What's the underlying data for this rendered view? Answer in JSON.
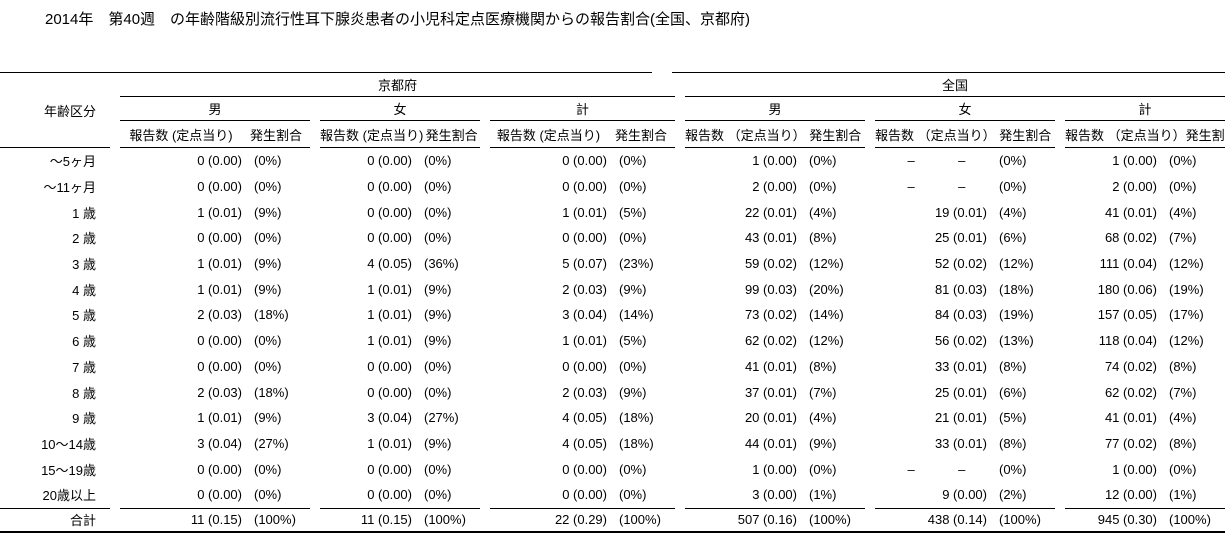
{
  "title": "2014年　第40週　の年齢階級別流行性耳下腺炎患者の小児科定点医療機関からの報告割合(全国、京都府)",
  "table": {
    "age_header": "年齢区分",
    "regions": {
      "kyoto": "京都府",
      "national": "全国"
    },
    "gender_headers": [
      "男",
      "女",
      "計"
    ],
    "count_header_kyoto": "報告数 (定点当り)",
    "count_header_national": "報告数 （定点当り）",
    "ratio_header": "発生割合",
    "rows": [
      {
        "age": "～5ヶ月",
        "cells": [
          {
            "c": "0 (0.00)",
            "p": "(0%)"
          },
          {
            "c": "0 (0.00)",
            "p": "(0%)"
          },
          {
            "c": "0 (0.00)",
            "p": "(0%)"
          },
          {
            "c": "1 (0.00)",
            "p": "(0%)"
          },
          {
            "c": "–            –      ",
            "p": "(0%)"
          },
          {
            "c": "1 (0.00)",
            "p": "(0%)"
          }
        ]
      },
      {
        "age": "～11ヶ月",
        "cells": [
          {
            "c": "0 (0.00)",
            "p": "(0%)"
          },
          {
            "c": "0 (0.00)",
            "p": "(0%)"
          },
          {
            "c": "0 (0.00)",
            "p": "(0%)"
          },
          {
            "c": "2 (0.00)",
            "p": "(0%)"
          },
          {
            "c": "–            –      ",
            "p": "(0%)"
          },
          {
            "c": "2 (0.00)",
            "p": "(0%)"
          }
        ]
      },
      {
        "age": "1 歳",
        "cells": [
          {
            "c": "1 (0.01)",
            "p": "(9%)"
          },
          {
            "c": "0 (0.00)",
            "p": "(0%)"
          },
          {
            "c": "1 (0.01)",
            "p": "(5%)"
          },
          {
            "c": "22 (0.01)",
            "p": "(4%)"
          },
          {
            "c": "19 (0.01)",
            "p": "(4%)"
          },
          {
            "c": "41 (0.01)",
            "p": "(4%)"
          }
        ]
      },
      {
        "age": "2 歳",
        "cells": [
          {
            "c": "0 (0.00)",
            "p": "(0%)"
          },
          {
            "c": "0 (0.00)",
            "p": "(0%)"
          },
          {
            "c": "0 (0.00)",
            "p": "(0%)"
          },
          {
            "c": "43 (0.01)",
            "p": "(8%)"
          },
          {
            "c": "25 (0.01)",
            "p": "(6%)"
          },
          {
            "c": "68 (0.02)",
            "p": "(7%)"
          }
        ]
      },
      {
        "age": "3 歳",
        "cells": [
          {
            "c": "1 (0.01)",
            "p": "(9%)"
          },
          {
            "c": "4 (0.05)",
            "p": "(36%)"
          },
          {
            "c": "5 (0.07)",
            "p": "(23%)"
          },
          {
            "c": "59 (0.02)",
            "p": "(12%)"
          },
          {
            "c": "52 (0.02)",
            "p": "(12%)"
          },
          {
            "c": "111 (0.04)",
            "p": "(12%)"
          }
        ]
      },
      {
        "age": "4 歳",
        "cells": [
          {
            "c": "1 (0.01)",
            "p": "(9%)"
          },
          {
            "c": "1 (0.01)",
            "p": "(9%)"
          },
          {
            "c": "2 (0.03)",
            "p": "(9%)"
          },
          {
            "c": "99 (0.03)",
            "p": "(20%)"
          },
          {
            "c": "81 (0.03)",
            "p": "(18%)"
          },
          {
            "c": "180 (0.06)",
            "p": "(19%)"
          }
        ]
      },
      {
        "age": "5 歳",
        "cells": [
          {
            "c": "2 (0.03)",
            "p": "(18%)"
          },
          {
            "c": "1 (0.01)",
            "p": "(9%)"
          },
          {
            "c": "3 (0.04)",
            "p": "(14%)"
          },
          {
            "c": "73 (0.02)",
            "p": "(14%)"
          },
          {
            "c": "84 (0.03)",
            "p": "(19%)"
          },
          {
            "c": "157 (0.05)",
            "p": "(17%)"
          }
        ]
      },
      {
        "age": "6 歳",
        "cells": [
          {
            "c": "0 (0.00)",
            "p": "(0%)"
          },
          {
            "c": "1 (0.01)",
            "p": "(9%)"
          },
          {
            "c": "1 (0.01)",
            "p": "(5%)"
          },
          {
            "c": "62 (0.02)",
            "p": "(12%)"
          },
          {
            "c": "56 (0.02)",
            "p": "(13%)"
          },
          {
            "c": "118 (0.04)",
            "p": "(12%)"
          }
        ]
      },
      {
        "age": "7 歳",
        "cells": [
          {
            "c": "0 (0.00)",
            "p": "(0%)"
          },
          {
            "c": "0 (0.00)",
            "p": "(0%)"
          },
          {
            "c": "0 (0.00)",
            "p": "(0%)"
          },
          {
            "c": "41 (0.01)",
            "p": "(8%)"
          },
          {
            "c": "33 (0.01)",
            "p": "(8%)"
          },
          {
            "c": "74 (0.02)",
            "p": "(8%)"
          }
        ]
      },
      {
        "age": "8 歳",
        "cells": [
          {
            "c": "2 (0.03)",
            "p": "(18%)"
          },
          {
            "c": "0 (0.00)",
            "p": "(0%)"
          },
          {
            "c": "2 (0.03)",
            "p": "(9%)"
          },
          {
            "c": "37 (0.01)",
            "p": "(7%)"
          },
          {
            "c": "25 (0.01)",
            "p": "(6%)"
          },
          {
            "c": "62 (0.02)",
            "p": "(7%)"
          }
        ]
      },
      {
        "age": "9 歳",
        "cells": [
          {
            "c": "1 (0.01)",
            "p": "(9%)"
          },
          {
            "c": "3 (0.04)",
            "p": "(27%)"
          },
          {
            "c": "4 (0.05)",
            "p": "(18%)"
          },
          {
            "c": "20 (0.01)",
            "p": "(4%)"
          },
          {
            "c": "21 (0.01)",
            "p": "(5%)"
          },
          {
            "c": "41 (0.01)",
            "p": "(4%)"
          }
        ]
      },
      {
        "age": "10～14歳",
        "cells": [
          {
            "c": "3 (0.04)",
            "p": "(27%)"
          },
          {
            "c": "1 (0.01)",
            "p": "(9%)"
          },
          {
            "c": "4 (0.05)",
            "p": "(18%)"
          },
          {
            "c": "44 (0.01)",
            "p": "(9%)"
          },
          {
            "c": "33 (0.01)",
            "p": "(8%)"
          },
          {
            "c": "77 (0.02)",
            "p": "(8%)"
          }
        ]
      },
      {
        "age": "15～19歳",
        "cells": [
          {
            "c": "0 (0.00)",
            "p": "(0%)"
          },
          {
            "c": "0 (0.00)",
            "p": "(0%)"
          },
          {
            "c": "0 (0.00)",
            "p": "(0%)"
          },
          {
            "c": "1 (0.00)",
            "p": "(0%)"
          },
          {
            "c": "–            –      ",
            "p": "(0%)"
          },
          {
            "c": "1 (0.00)",
            "p": "(0%)"
          }
        ]
      },
      {
        "age": "20歳以上",
        "cells": [
          {
            "c": "0 (0.00)",
            "p": "(0%)"
          },
          {
            "c": "0 (0.00)",
            "p": "(0%)"
          },
          {
            "c": "0 (0.00)",
            "p": "(0%)"
          },
          {
            "c": "3 (0.00)",
            "p": "(1%)"
          },
          {
            "c": "9 (0.00)",
            "p": "(2%)"
          },
          {
            "c": "12 (0.00)",
            "p": "(1%)"
          }
        ]
      }
    ],
    "total_row": {
      "age": "合計",
      "cells": [
        {
          "c": "11 (0.15)",
          "p": "(100%)"
        },
        {
          "c": "11 (0.15)",
          "p": "(100%)"
        },
        {
          "c": "22 (0.29)",
          "p": "(100%)"
        },
        {
          "c": "507 (0.16)",
          "p": "(100%)"
        },
        {
          "c": "438 (0.14)",
          "p": "(100%)"
        },
        {
          "c": "945 (0.30)",
          "p": "(100%)"
        }
      ]
    }
  }
}
